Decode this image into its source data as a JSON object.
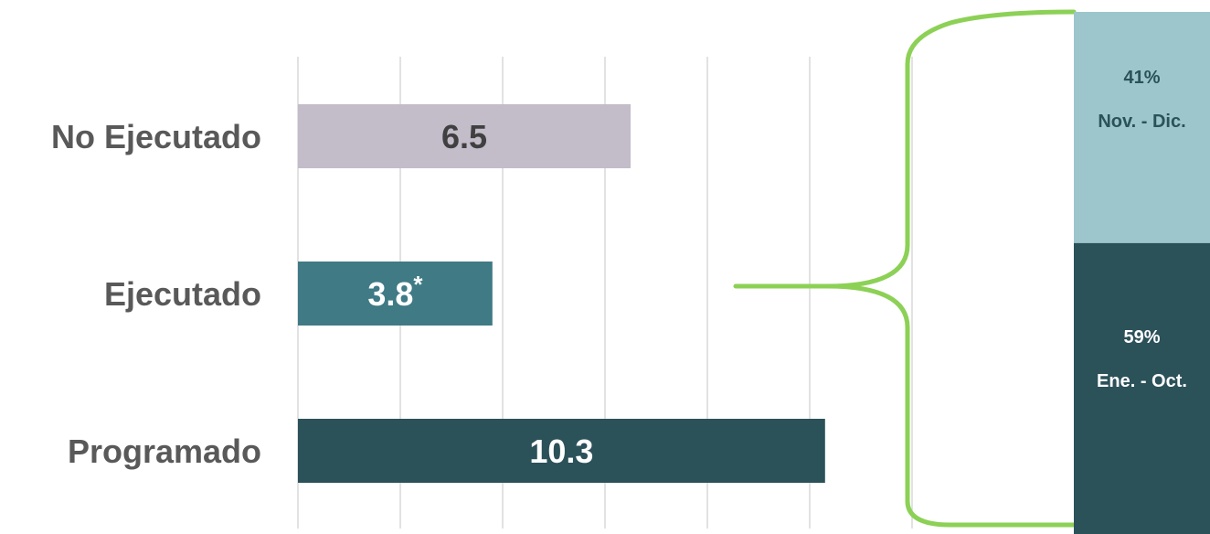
{
  "chart_data": [
    {
      "type": "bar",
      "orientation": "horizontal",
      "categories": [
        "No Ejecutado",
        "Ejecutado",
        "Programado"
      ],
      "values": [
        6.5,
        3.8,
        10.3
      ],
      "value_labels": [
        "6.5",
        "3.8",
        "10.3"
      ],
      "value_label_suffixes": [
        "",
        "*",
        ""
      ],
      "xlim": [
        0,
        12
      ],
      "grid": true,
      "title": "",
      "xlabel": "",
      "ylabel": "",
      "colors": [
        "#c3bcc9",
        "#3f7a85",
        "#2b5159"
      ],
      "label_colors": [
        "#404040",
        "#ffffff",
        "#ffffff"
      ]
    },
    {
      "type": "bar",
      "stacked": true,
      "refers_to": "Ejecutado",
      "segments": [
        {
          "percent_label": "41%",
          "period": "Nov. - Dic.",
          "value": 41,
          "color": "#9cc6cc",
          "text_color": "#2b5159"
        },
        {
          "percent_label": "59%",
          "period": "Ene. - Oct.",
          "value": 59,
          "color": "#2b5159",
          "text_color": "#ffffff"
        }
      ]
    }
  ],
  "colors": {
    "grid": "#d9d9d9",
    "bracket": "#8cd156",
    "category_text": "#595959"
  }
}
